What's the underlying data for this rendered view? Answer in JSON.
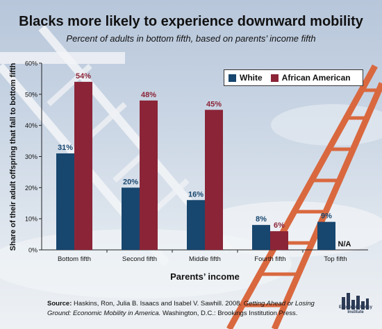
{
  "header": {
    "title": "Blacks more likely to experience downward mobility",
    "subtitle": "Percent of adults in bottom fifth, based on parents’ income fifth"
  },
  "chart_data": {
    "type": "bar",
    "categories": [
      "Bottom fifth",
      "Second fifth",
      "Middle fifth",
      "Fourth fifth",
      "Top fifth"
    ],
    "series": [
      {
        "name": "White",
        "values": [
          31,
          20,
          16,
          8,
          9
        ],
        "labels": [
          "31%",
          "20%",
          "16%",
          "8%",
          "9%"
        ],
        "color": "#17466e"
      },
      {
        "name": "African American",
        "values": [
          54,
          48,
          45,
          6,
          null
        ],
        "labels": [
          "54%",
          "48%",
          "45%",
          "6%",
          "N/A"
        ],
        "color": "#8b2437"
      }
    ],
    "ylim": [
      0,
      60
    ],
    "yticks": [
      0,
      10,
      20,
      30,
      40,
      50,
      60
    ],
    "ytick_labels": [
      "0%",
      "10%",
      "20%",
      "30%",
      "40%",
      "50%",
      "60%"
    ],
    "ylabel": "Share of their adult offspring that fall to bottom fifth",
    "xlabel": "Parents’ income",
    "legend_position": "top-right",
    "grid": false
  },
  "footer": {
    "source_label": "Source:",
    "source_text": "Haskins, Ron, Julia B. Isaacs and Isabel V. Sawhill. 2008.",
    "source_title": "Getting Ahead or Losing Ground: Economic Mobility in America.",
    "source_rest": "Washington, D.C.: Brookings Institution Press.",
    "logo_text": "Economic Policy Institute"
  },
  "colors": {
    "white_series": "#17466e",
    "african_american_series": "#8b2437",
    "label_white": "#17466e",
    "label_black": "#8b2437"
  }
}
